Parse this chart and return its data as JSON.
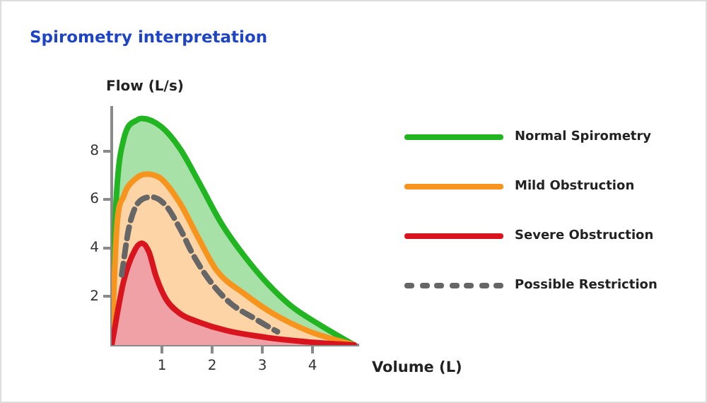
{
  "chart_data": {
    "type": "area",
    "title": "Spirometry interpretation",
    "xlabel": "Volume (L)",
    "ylabel": "Flow (L/s)",
    "xlim": [
      0,
      4.9
    ],
    "ylim": [
      0,
      9.8
    ],
    "xticks": [
      1,
      2,
      3,
      4
    ],
    "yticks": [
      2,
      4,
      6,
      8
    ],
    "grid": false,
    "legend": "right",
    "marker": "none",
    "series": [
      {
        "name": "Normal Spirometry",
        "color": "#22b522",
        "x": [
          0,
          0.04,
          0.1,
          0.24,
          0.52,
          0.6,
          0.99,
          1.36,
          1.73,
          2.19,
          2.65,
          3.12,
          3.58,
          4.13,
          4.83
        ],
        "values": [
          0,
          3.45,
          6.35,
          8.5,
          9.3,
          9.35,
          9.0,
          8.1,
          6.75,
          5.0,
          3.65,
          2.5,
          1.6,
          0.85,
          0
        ]
      },
      {
        "name": "Mild Obstruction",
        "color": "#f7941d",
        "x": [
          0,
          0.1,
          0.24,
          0.47,
          0.7,
          0.99,
          1.36,
          1.73,
          2.1,
          2.65,
          3.21,
          3.95,
          4.83
        ],
        "values": [
          0,
          4.8,
          6.15,
          6.85,
          7.05,
          6.85,
          5.85,
          4.4,
          3.05,
          2.1,
          1.3,
          0.55,
          0
        ]
      },
      {
        "name": "Severe Obstruction",
        "color": "#d8141e",
        "x": [
          0,
          0.24,
          0.47,
          0.6,
          0.74,
          0.88,
          1.08,
          1.36,
          1.73,
          2.28,
          3.12,
          3.95,
          4.83
        ],
        "values": [
          0,
          2.65,
          3.95,
          4.2,
          3.85,
          2.85,
          1.9,
          1.3,
          0.95,
          0.6,
          0.3,
          0.12,
          0
        ]
      },
      {
        "name": "Possible Restriction",
        "type": "line",
        "line_style": "dashed",
        "color": "#666666",
        "x": [
          0.2,
          0.34,
          0.52,
          0.8,
          1.08,
          1.36,
          1.64,
          2.01,
          2.38,
          2.84,
          3.21,
          3.3
        ],
        "values": [
          2.9,
          4.8,
          5.85,
          6.1,
          5.75,
          4.8,
          3.65,
          2.5,
          1.7,
          1.1,
          0.65,
          0.55
        ]
      }
    ]
  }
}
